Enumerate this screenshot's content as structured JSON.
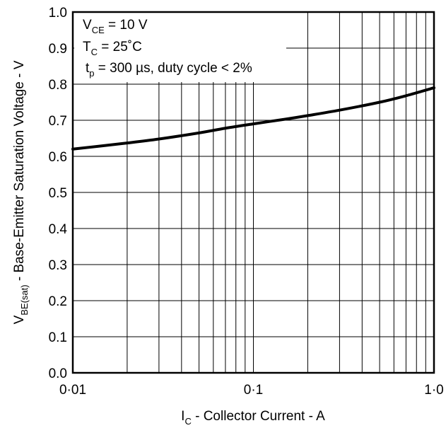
{
  "chart_data": {
    "type": "line",
    "xscale": "log",
    "xlim": [
      0.01,
      1.0
    ],
    "ylim": [
      0.0,
      1.0
    ],
    "grid": true,
    "x_ticks": [
      {
        "value": 0.01,
        "label": "0·01"
      },
      {
        "value": 0.1,
        "label": "0·1"
      },
      {
        "value": 1.0,
        "label": "1·0"
      }
    ],
    "y_ticks": [
      {
        "value": 0.0,
        "label": "0.0"
      },
      {
        "value": 0.1,
        "label": "0.1"
      },
      {
        "value": 0.2,
        "label": "0.2"
      },
      {
        "value": 0.3,
        "label": "0.3"
      },
      {
        "value": 0.4,
        "label": "0.4"
      },
      {
        "value": 0.5,
        "label": "0.5"
      },
      {
        "value": 0.6,
        "label": "0.6"
      },
      {
        "value": 0.7,
        "label": "0.7"
      },
      {
        "value": 0.8,
        "label": "0.8"
      },
      {
        "value": 0.9,
        "label": "0.9"
      },
      {
        "value": 1.0,
        "label": "1.0"
      }
    ],
    "xlabel": {
      "main": "I",
      "sub": "C",
      "rest": " - Collector Current - A"
    },
    "ylabel": {
      "main": "V",
      "sub": "BE(sat)",
      "rest": " - Base-Emitter Saturation Voltage - V"
    },
    "annotations": [
      {
        "main": "V",
        "sub": "CE",
        "rest": " = 10 V"
      },
      {
        "main": "T",
        "sub": "C",
        "rest": "   = 25˚C"
      },
      {
        "main": "t",
        "sub": "p",
        "rest": "   = 300 µs, duty cycle < 2%"
      }
    ],
    "series": [
      {
        "x": [
          0.01,
          0.02,
          0.03,
          0.05,
          0.07,
          0.1,
          0.15,
          0.2,
          0.3,
          0.5,
          0.7,
          1.0
        ],
        "y": [
          0.62,
          0.637,
          0.648,
          0.665,
          0.678,
          0.69,
          0.703,
          0.713,
          0.728,
          0.75,
          0.768,
          0.79
        ]
      }
    ]
  }
}
